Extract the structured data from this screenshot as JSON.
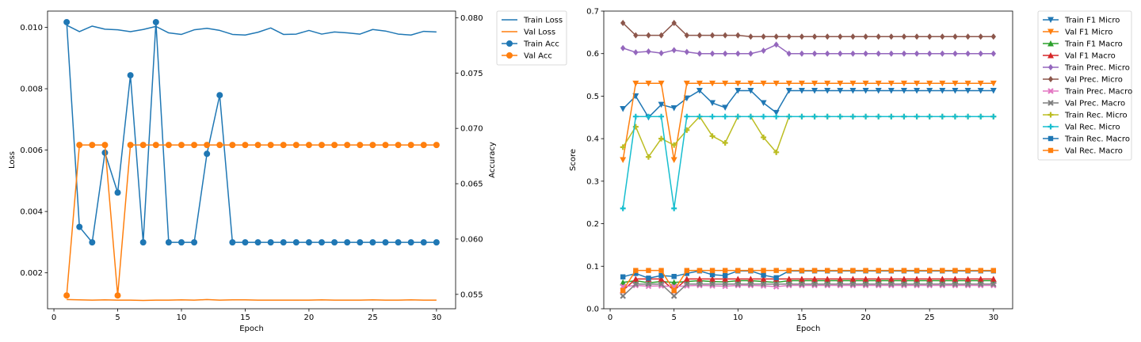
{
  "chart_data": [
    {
      "type": "line",
      "xlabel": "Epoch",
      "ylabel": "Loss",
      "ylabel_right": "Accuracy",
      "xlim": [
        -0.5,
        31.5
      ],
      "ylim": [
        0.00083,
        0.01053
      ],
      "ylim_right": [
        0.0537,
        0.0806
      ],
      "xticks": [
        0,
        5,
        10,
        15,
        20,
        25,
        30
      ],
      "yticks": [
        0.002,
        0.004,
        0.006,
        0.008,
        0.01
      ],
      "yticks_right": [
        0.055,
        0.06,
        0.065,
        0.07,
        0.075,
        0.08
      ],
      "x": [
        1,
        2,
        3,
        4,
        5,
        6,
        7,
        8,
        9,
        10,
        11,
        12,
        13,
        14,
        15,
        16,
        17,
        18,
        19,
        20,
        21,
        22,
        23,
        24,
        25,
        26,
        27,
        28,
        29,
        30
      ],
      "legend_position": "outside-right",
      "series": [
        {
          "name": "Train Loss",
          "axis": "left",
          "color": "#1f77b4",
          "marker": "none",
          "values": [
            0.01007,
            0.00986,
            0.01004,
            0.00994,
            0.00992,
            0.00986,
            0.00993,
            0.01003,
            0.00982,
            0.00977,
            0.00992,
            0.00997,
            0.0099,
            0.00977,
            0.00975,
            0.00984,
            0.00998,
            0.00977,
            0.00978,
            0.0099,
            0.00978,
            0.00985,
            0.00982,
            0.00978,
            0.00993,
            0.00988,
            0.00978,
            0.00975,
            0.00987,
            0.00985
          ]
        },
        {
          "name": "Val Loss",
          "axis": "left",
          "color": "#ff7f0e",
          "marker": "none",
          "values": [
            0.00113,
            0.00112,
            0.00111,
            0.00112,
            0.00111,
            0.00111,
            0.0011,
            0.00111,
            0.00111,
            0.00112,
            0.00111,
            0.00113,
            0.00111,
            0.00112,
            0.00112,
            0.00111,
            0.00111,
            0.00111,
            0.00111,
            0.00111,
            0.00112,
            0.00111,
            0.00111,
            0.00111,
            0.00112,
            0.00111,
            0.00111,
            0.00112,
            0.00111,
            0.00111
          ]
        },
        {
          "name": "Train Acc",
          "axis": "right",
          "color": "#1f77b4",
          "marker": "circle",
          "values": [
            0.0796,
            0.0611,
            0.0597,
            0.0678,
            0.0642,
            0.0748,
            0.0597,
            0.0796,
            0.0597,
            0.0597,
            0.0597,
            0.0677,
            0.073,
            0.0597,
            0.0597,
            0.0597,
            0.0597,
            0.0597,
            0.0597,
            0.0597,
            0.0597,
            0.0597,
            0.0597,
            0.0597,
            0.0597,
            0.0597,
            0.0597,
            0.0597,
            0.0597,
            0.0597
          ]
        },
        {
          "name": "Val Acc",
          "axis": "right",
          "color": "#ff7f0e",
          "marker": "circle",
          "values": [
            0.0549,
            0.0685,
            0.0685,
            0.0685,
            0.0549,
            0.0685,
            0.0685,
            0.0685,
            0.0685,
            0.0685,
            0.0685,
            0.0685,
            0.0685,
            0.0685,
            0.0685,
            0.0685,
            0.0685,
            0.0685,
            0.0685,
            0.0685,
            0.0685,
            0.0685,
            0.0685,
            0.0685,
            0.0685,
            0.0685,
            0.0685,
            0.0685,
            0.0685,
            0.0685
          ]
        }
      ]
    },
    {
      "type": "line",
      "xlabel": "Epoch",
      "ylabel": "Score",
      "xlim": [
        -0.5,
        31.5
      ],
      "ylim": [
        0.0,
        0.7
      ],
      "xticks": [
        0,
        5,
        10,
        15,
        20,
        25,
        30
      ],
      "yticks": [
        0.0,
        0.1,
        0.2,
        0.3,
        0.4,
        0.5,
        0.6,
        0.7
      ],
      "x": [
        1,
        2,
        3,
        4,
        5,
        6,
        7,
        8,
        9,
        10,
        11,
        12,
        13,
        14,
        15,
        16,
        17,
        18,
        19,
        20,
        21,
        22,
        23,
        24,
        25,
        26,
        27,
        28,
        29,
        30
      ],
      "legend_position": "outside-right",
      "series": [
        {
          "name": "Train F1 Micro",
          "color": "#1f77b4",
          "marker": "triangle-down",
          "values": [
            0.47,
            0.5,
            0.45,
            0.48,
            0.472,
            0.495,
            0.513,
            0.484,
            0.473,
            0.513,
            0.513,
            0.484,
            0.461,
            0.513,
            0.513,
            0.513,
            0.513,
            0.513,
            0.513,
            0.513,
            0.513,
            0.513,
            0.513,
            0.513,
            0.513,
            0.513,
            0.513,
            0.513,
            0.513,
            0.513
          ]
        },
        {
          "name": "Val F1 Micro",
          "color": "#ff7f0e",
          "marker": "triangle-down",
          "values": [
            0.35,
            0.53,
            0.53,
            0.53,
            0.35,
            0.53,
            0.53,
            0.53,
            0.53,
            0.53,
            0.53,
            0.53,
            0.53,
            0.53,
            0.53,
            0.53,
            0.53,
            0.53,
            0.53,
            0.53,
            0.53,
            0.53,
            0.53,
            0.53,
            0.53,
            0.53,
            0.53,
            0.53,
            0.53,
            0.53
          ]
        },
        {
          "name": "Train F1 Macro",
          "color": "#2ca02c",
          "marker": "triangle-up",
          "values": [
            0.062,
            0.066,
            0.061,
            0.064,
            0.062,
            0.064,
            0.066,
            0.064,
            0.063,
            0.066,
            0.066,
            0.064,
            0.062,
            0.066,
            0.066,
            0.066,
            0.066,
            0.066,
            0.066,
            0.066,
            0.066,
            0.066,
            0.066,
            0.066,
            0.066,
            0.066,
            0.066,
            0.066,
            0.066,
            0.066
          ]
        },
        {
          "name": "Val F1 Macro",
          "color": "#d62728",
          "marker": "triangle-up",
          "values": [
            0.043,
            0.07,
            0.07,
            0.07,
            0.043,
            0.07,
            0.07,
            0.07,
            0.07,
            0.07,
            0.07,
            0.07,
            0.07,
            0.07,
            0.07,
            0.07,
            0.07,
            0.07,
            0.07,
            0.07,
            0.07,
            0.07,
            0.07,
            0.07,
            0.07,
            0.07,
            0.07,
            0.07,
            0.07,
            0.07
          ]
        },
        {
          "name": "Train Prec. Micro",
          "color": "#9467bd",
          "marker": "diamond",
          "values": [
            0.613,
            0.603,
            0.605,
            0.601,
            0.608,
            0.604,
            0.6,
            0.6,
            0.6,
            0.6,
            0.6,
            0.607,
            0.621,
            0.6,
            0.6,
            0.6,
            0.6,
            0.6,
            0.6,
            0.6,
            0.6,
            0.6,
            0.6,
            0.6,
            0.6,
            0.6,
            0.6,
            0.6,
            0.6,
            0.6
          ]
        },
        {
          "name": "Val Prec. Micro",
          "color": "#8c564b",
          "marker": "diamond",
          "values": [
            0.672,
            0.643,
            0.643,
            0.643,
            0.672,
            0.643,
            0.643,
            0.643,
            0.643,
            0.643,
            0.64,
            0.64,
            0.64,
            0.64,
            0.64,
            0.64,
            0.64,
            0.64,
            0.64,
            0.64,
            0.64,
            0.64,
            0.64,
            0.64,
            0.64,
            0.64,
            0.64,
            0.64,
            0.64,
            0.64
          ]
        },
        {
          "name": "Train Prec. Macro",
          "color": "#e377c2",
          "marker": "x",
          "values": [
            0.052,
            0.055,
            0.053,
            0.054,
            0.052,
            0.054,
            0.055,
            0.054,
            0.053,
            0.055,
            0.055,
            0.054,
            0.052,
            0.055,
            0.055,
            0.055,
            0.055,
            0.055,
            0.055,
            0.055,
            0.055,
            0.055,
            0.055,
            0.055,
            0.055,
            0.055,
            0.055,
            0.055,
            0.055,
            0.055
          ]
        },
        {
          "name": "Val Prec. Macro",
          "color": "#7f7f7f",
          "marker": "x",
          "values": [
            0.03,
            0.058,
            0.058,
            0.058,
            0.03,
            0.058,
            0.058,
            0.058,
            0.058,
            0.058,
            0.058,
            0.058,
            0.058,
            0.058,
            0.058,
            0.058,
            0.058,
            0.058,
            0.058,
            0.058,
            0.058,
            0.058,
            0.058,
            0.058,
            0.058,
            0.058,
            0.058,
            0.058,
            0.058,
            0.058
          ]
        },
        {
          "name": "Train Rec. Micro",
          "color": "#bcbd22",
          "marker": "plus",
          "values": [
            0.38,
            0.428,
            0.357,
            0.4,
            0.385,
            0.42,
            0.452,
            0.406,
            0.39,
            0.452,
            0.452,
            0.403,
            0.368,
            0.452,
            0.452,
            0.452,
            0.452,
            0.452,
            0.452,
            0.452,
            0.452,
            0.452,
            0.452,
            0.452,
            0.452,
            0.452,
            0.452,
            0.452,
            0.452,
            0.452
          ]
        },
        {
          "name": "Val Rec. Micro",
          "color": "#17becf",
          "marker": "plus",
          "values": [
            0.236,
            0.452,
            0.452,
            0.452,
            0.236,
            0.452,
            0.452,
            0.452,
            0.452,
            0.452,
            0.452,
            0.452,
            0.452,
            0.452,
            0.452,
            0.452,
            0.452,
            0.452,
            0.452,
            0.452,
            0.452,
            0.452,
            0.452,
            0.452,
            0.452,
            0.452,
            0.452,
            0.452,
            0.452,
            0.452
          ]
        },
        {
          "name": "Train Rec. Macro",
          "color": "#1f77b4",
          "marker": "square",
          "values": [
            0.075,
            0.083,
            0.072,
            0.078,
            0.076,
            0.083,
            0.089,
            0.08,
            0.078,
            0.089,
            0.089,
            0.079,
            0.073,
            0.089,
            0.089,
            0.089,
            0.089,
            0.089,
            0.089,
            0.089,
            0.089,
            0.089,
            0.089,
            0.089,
            0.089,
            0.089,
            0.089,
            0.089,
            0.089,
            0.089
          ]
        },
        {
          "name": "Val Rec. Macro",
          "color": "#ff7f0e",
          "marker": "square",
          "values": [
            0.043,
            0.09,
            0.09,
            0.09,
            0.043,
            0.09,
            0.09,
            0.09,
            0.09,
            0.09,
            0.09,
            0.09,
            0.09,
            0.09,
            0.09,
            0.09,
            0.09,
            0.09,
            0.09,
            0.09,
            0.09,
            0.09,
            0.09,
            0.09,
            0.09,
            0.09,
            0.09,
            0.09,
            0.09,
            0.09
          ]
        }
      ]
    }
  ]
}
